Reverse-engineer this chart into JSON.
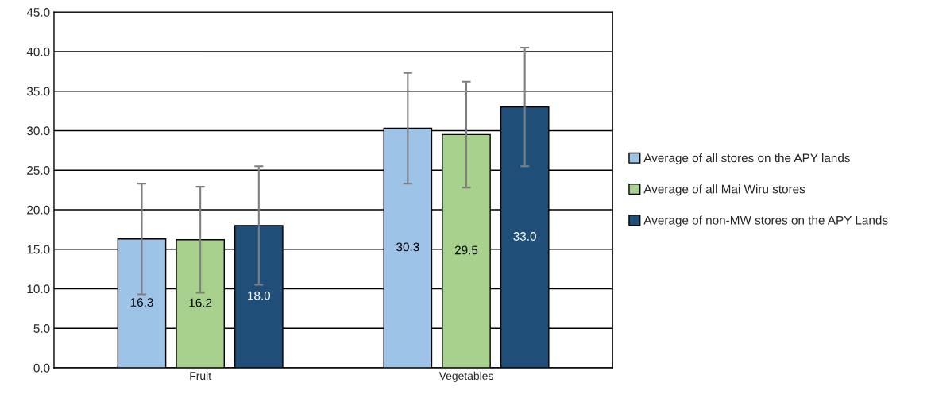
{
  "chart_data": {
    "type": "bar",
    "categories": [
      "Fruit",
      "Vegetables"
    ],
    "series": [
      {
        "name": "Average of all stores on the APY lands",
        "color": "#9dc3e6",
        "values": [
          16.3,
          30.3
        ],
        "value_labels": [
          "16.3",
          "30.3"
        ],
        "errors": [
          7.0,
          7.0
        ]
      },
      {
        "name": "Average of all Mai Wiru stores",
        "color": "#a9d18e",
        "values": [
          16.2,
          29.5
        ],
        "value_labels": [
          "16.2",
          "29.5"
        ],
        "errors": [
          6.7,
          6.7
        ]
      },
      {
        "name": "Average of non-MW stores on the APY Lands",
        "color": "#1f4e79",
        "values": [
          18.0,
          33.0
        ],
        "value_labels": [
          "18.0",
          "33.0"
        ],
        "errors": [
          7.5,
          7.5
        ]
      }
    ],
    "ylim": [
      0,
      45
    ],
    "yticks": [
      {
        "value": 0,
        "label": "0.0"
      },
      {
        "value": 5,
        "label": "5.0"
      },
      {
        "value": 10,
        "label": "10.0"
      },
      {
        "value": 15,
        "label": "15.0"
      },
      {
        "value": 20,
        "label": "20.0"
      },
      {
        "value": 25,
        "label": "25.0"
      },
      {
        "value": 30,
        "label": "30.0"
      },
      {
        "value": 35,
        "label": "35.0"
      },
      {
        "value": 40,
        "label": "40.0"
      },
      {
        "value": 45,
        "label": "45.0"
      }
    ],
    "grid": "y",
    "legend": "right"
  }
}
